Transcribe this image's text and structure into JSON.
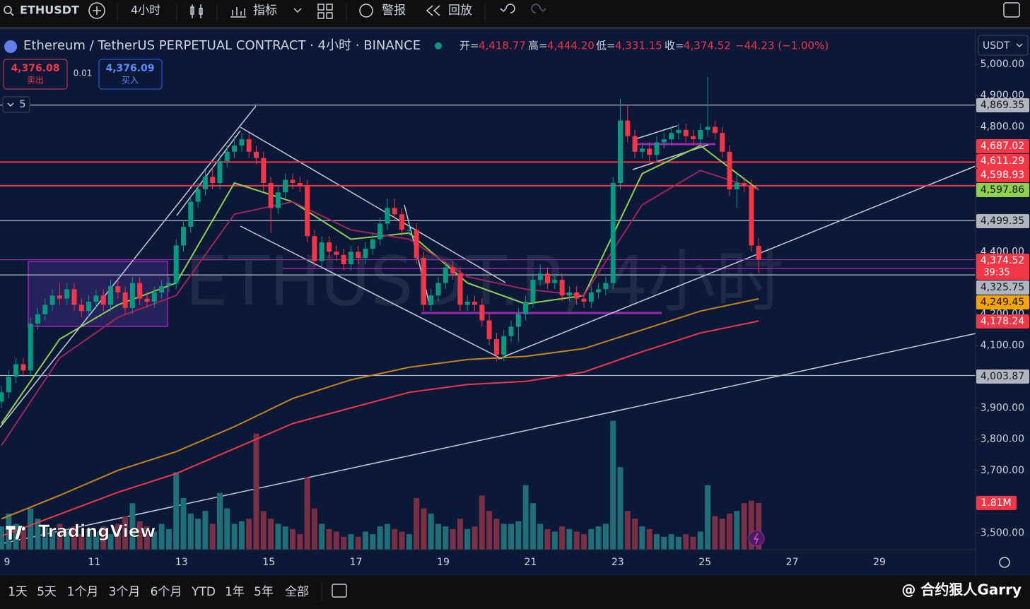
{
  "toolbar": {
    "symbol": "ETHUSDT",
    "interval": "4小时",
    "indicators": "指标",
    "alert": "警报",
    "replay": "回放"
  },
  "legend": {
    "title": "Ethereum / TetherUS PERPETUAL CONTRACT · 4小时 · BINANCE",
    "open_label": "开=",
    "open": "4,418.77",
    "high_label": "高=",
    "high": "4,444.20",
    "low_label": "低=",
    "low": "4,331.15",
    "close_label": "收=",
    "close": "4,374.52",
    "change": "−44.23 (−1.00%)"
  },
  "trade": {
    "sell_price": "4,376.08",
    "sell": "卖出",
    "spread": "0.01",
    "buy_price": "4,376.09",
    "buy": "买入"
  },
  "indicator_count": "5",
  "currency": "USDT",
  "watermark": "ETHUSDT.P, 4小时",
  "logo": "TradingView",
  "ranges": [
    "1天",
    "5天",
    "1个月",
    "3个月",
    "6个月",
    "YTD",
    "1年",
    "5年",
    "全部"
  ],
  "footer_watermark": "@ 合约狠人Garry",
  "chart_data": {
    "type": "candlestick",
    "up_color": "#089981",
    "down_color": "#f23645",
    "open": [
      3920,
      3950,
      4000,
      4040,
      4020,
      4170,
      4200,
      4230,
      4260,
      4250,
      4280,
      4230,
      4210,
      4240,
      4260,
      4230,
      4290,
      4270,
      4220,
      4300,
      4250,
      4240,
      4270,
      4290,
      4300,
      4420,
      4480,
      4560,
      4600,
      4640,
      4620,
      4690,
      4720,
      4740,
      4760,
      4720,
      4700,
      4620,
      4540,
      4590,
      4630,
      4620,
      4610,
      4450,
      4370,
      4430,
      4400,
      4390,
      4360,
      4400,
      4380,
      4410,
      4440,
      4490,
      4540,
      4520,
      4470,
      4470,
      4380,
      4230,
      4260,
      4300,
      4350,
      4330,
      4230,
      4240,
      4230,
      4180,
      4120,
      4070,
      4130,
      4160,
      4200,
      4240,
      4310,
      4330,
      4300,
      4310,
      4260,
      4270,
      4250,
      4240,
      4270,
      4280,
      4300,
      4620,
      4820,
      4770,
      4720,
      4730,
      4710,
      4750,
      4760,
      4780,
      4790,
      4770,
      4760,
      4790,
      4800,
      4780,
      4720,
      4600,
      4620,
      4610,
      4418.77
    ],
    "high": [
      3970,
      4020,
      4060,
      4060,
      4190,
      4220,
      4250,
      4280,
      4300,
      4300,
      4300,
      4250,
      4260,
      4280,
      4280,
      4310,
      4310,
      4290,
      4320,
      4320,
      4270,
      4290,
      4310,
      4320,
      4440,
      4500,
      4580,
      4620,
      4660,
      4670,
      4710,
      4740,
      4770,
      4780,
      4780,
      4740,
      4720,
      4640,
      4610,
      4650,
      4650,
      4640,
      4630,
      4470,
      4450,
      4450,
      4420,
      4410,
      4420,
      4420,
      4430,
      4460,
      4510,
      4570,
      4570,
      4540,
      4490,
      4490,
      4400,
      4280,
      4320,
      4370,
      4370,
      4350,
      4260,
      4260,
      4250,
      4200,
      4140,
      4150,
      4180,
      4220,
      4260,
      4330,
      4360,
      4350,
      4330,
      4330,
      4290,
      4290,
      4270,
      4290,
      4300,
      4320,
      4640,
      4890,
      4870,
      4790,
      4750,
      4750,
      4770,
      4780,
      4800,
      4810,
      4810,
      4790,
      4810,
      4960,
      4820,
      4800,
      4740,
      4650,
      4640,
      4630,
      4444.2
    ],
    "low": [
      3900,
      3930,
      3980,
      4000,
      4000,
      4150,
      4180,
      4210,
      4230,
      4230,
      4210,
      4190,
      4190,
      4220,
      4210,
      4210,
      4250,
      4200,
      4200,
      4230,
      4220,
      4220,
      4250,
      4270,
      4280,
      4400,
      4460,
      4540,
      4580,
      4600,
      4600,
      4670,
      4700,
      4720,
      4700,
      4680,
      4590,
      4460,
      4520,
      4570,
      4600,
      4590,
      4430,
      4350,
      4350,
      4380,
      4370,
      4340,
      4340,
      4360,
      4360,
      4390,
      4420,
      4470,
      4500,
      4450,
      4450,
      4360,
      4210,
      4210,
      4240,
      4280,
      4310,
      4210,
      4210,
      4210,
      4160,
      4100,
      4050,
      4050,
      4110,
      4110,
      4180,
      4220,
      4290,
      4280,
      4280,
      4240,
      4240,
      4230,
      4220,
      4220,
      4250,
      4260,
      4280,
      4600,
      4750,
      4700,
      4700,
      4690,
      4690,
      4730,
      4740,
      4760,
      4750,
      4740,
      4740,
      4770,
      4760,
      4700,
      4580,
      4540,
      4590,
      4400,
      4331.15
    ],
    "close": [
      3950,
      4000,
      4040,
      4020,
      4170,
      4200,
      4230,
      4260,
      4250,
      4280,
      4230,
      4210,
      4240,
      4260,
      4230,
      4290,
      4270,
      4220,
      4300,
      4250,
      4240,
      4270,
      4290,
      4300,
      4420,
      4480,
      4560,
      4600,
      4640,
      4620,
      4690,
      4720,
      4740,
      4760,
      4720,
      4700,
      4620,
      4540,
      4590,
      4630,
      4620,
      4610,
      4450,
      4370,
      4430,
      4400,
      4390,
      4360,
      4400,
      4380,
      4410,
      4440,
      4490,
      4540,
      4520,
      4470,
      4470,
      4380,
      4230,
      4260,
      4300,
      4350,
      4330,
      4230,
      4240,
      4230,
      4180,
      4120,
      4070,
      4130,
      4160,
      4200,
      4240,
      4310,
      4330,
      4300,
      4310,
      4260,
      4270,
      4250,
      4240,
      4270,
      4280,
      4300,
      4620,
      4820,
      4770,
      4720,
      4730,
      4710,
      4750,
      4760,
      4780,
      4790,
      4770,
      4760,
      4790,
      4800,
      4780,
      4720,
      4600,
      4620,
      4610,
      4420,
      4374.52
    ],
    "volume": [
      0.9,
      1.4,
      1.0,
      0.8,
      1.6,
      1.2,
      0.9,
      0.8,
      1.0,
      0.7,
      0.9,
      0.6,
      0.8,
      0.7,
      0.9,
      0.6,
      1.0,
      1.3,
      1.8,
      1.1,
      0.9,
      0.7,
      1.0,
      0.8,
      3.0,
      2.0,
      1.4,
      1.2,
      1.5,
      1.0,
      2.2,
      1.6,
      1.0,
      1.1,
      1.2,
      4.5,
      1.5,
      1.2,
      1.0,
      0.9,
      0.8,
      0.6,
      2.8,
      1.6,
      1.0,
      0.8,
      0.7,
      0.5,
      0.6,
      0.5,
      0.7,
      0.6,
      0.9,
      1.0,
      0.8,
      0.7,
      0.6,
      2.0,
      1.6,
      1.4,
      1.0,
      0.9,
      0.8,
      1.2,
      0.8,
      0.9,
      2.1,
      1.5,
      1.2,
      1.0,
      1.0,
      1.1,
      2.5,
      1.8,
      1.0,
      0.8,
      0.7,
      0.9,
      0.8,
      0.7,
      0.6,
      0.8,
      0.9,
      1.0,
      5.0,
      3.2,
      1.5,
      1.2,
      0.9,
      0.8,
      0.6,
      0.5,
      0.6,
      0.5,
      0.6,
      0.5,
      0.7,
      2.5,
      1.3,
      1.2,
      1.4,
      1.5,
      1.8,
      1.9,
      1.81
    ],
    "volume_up_color": "#1f6f78",
    "volume_down_color": "#7a2f45",
    "volume_ticks": [
      {
        "value": 1.81,
        "label": "1.81M"
      }
    ],
    "ylim": [
      3362.7,
      5115.3
    ],
    "yticks": [
      {
        "value": 5000,
        "label": "5,000.00"
      },
      {
        "value": 4900,
        "label": "4,900.00"
      },
      {
        "value": 4800,
        "label": "4,800.00"
      },
      {
        "value": 4400,
        "label": "4,400.00"
      },
      {
        "value": 4200,
        "label": "4,200.00"
      },
      {
        "value": 4100,
        "label": "4,100.00"
      },
      {
        "value": 3900,
        "label": "3,900.00"
      },
      {
        "value": 3800,
        "label": "3,800.00"
      },
      {
        "value": 3700,
        "label": "3,700.00"
      },
      {
        "value": 3500,
        "label": "3,500.00"
      }
    ],
    "x_labels": [
      "9",
      "11",
      "13",
      "15",
      "17",
      "19",
      "21",
      "23",
      "25",
      "27",
      "29"
    ],
    "moving_averages": [
      {
        "color": "#8fd14f",
        "x": [
          0,
          8,
          16,
          24,
          32,
          40,
          48,
          56,
          64,
          72,
          80,
          88,
          96,
          104
        ],
        "values": [
          3850,
          4120,
          4230,
          4300,
          4620,
          4560,
          4440,
          4460,
          4300,
          4233,
          4260,
          4650,
          4740,
          4597.86
        ]
      },
      {
        "color": "#a0245a",
        "x": [
          0,
          8,
          16,
          24,
          32,
          40,
          48,
          56,
          64,
          72,
          80,
          88,
          96,
          104
        ],
        "values": [
          3780,
          4060,
          4190,
          4260,
          4520,
          4560,
          4470,
          4440,
          4320,
          4280,
          4260,
          4550,
          4660,
          4598.93
        ]
      },
      {
        "color": "#c6841a",
        "x": [
          0,
          8,
          16,
          24,
          32,
          40,
          48,
          56,
          64,
          72,
          80,
          88,
          96,
          104
        ],
        "values": [
          3545,
          3620,
          3700,
          3760,
          3840,
          3930,
          3990,
          4030,
          4055,
          4065,
          4090,
          4150,
          4210,
          4249.45
        ]
      },
      {
        "color": "#f23645",
        "x": [
          0,
          8,
          16,
          24,
          32,
          40,
          48,
          56,
          64,
          72,
          80,
          88,
          96,
          104
        ],
        "values": [
          3490,
          3560,
          3630,
          3690,
          3770,
          3850,
          3900,
          3950,
          3975,
          3985,
          4015,
          4080,
          4140,
          4178.24
        ]
      }
    ],
    "lines": [
      {
        "value": 4869.35,
        "color": "#b2b5be"
      },
      {
        "value": 4687.02,
        "color": "#f23645"
      },
      {
        "value": 4611.29,
        "color": "#f23645"
      },
      {
        "value": 4499.35,
        "color": "#b2b5be"
      },
      {
        "value": 4374.52,
        "color": "#9c27b0"
      },
      {
        "value": 4325.75,
        "color": "#b2b5be"
      },
      {
        "value": 4003.87,
        "color": "#b2b5be"
      }
    ],
    "price_tags": [
      {
        "label": "4,869.35",
        "color": "#b2b5be",
        "text_color": "#131722"
      },
      {
        "label": "4,687.02",
        "color": "#f23645",
        "text_color": "#ffffff"
      },
      {
        "label": "4,611.29",
        "color": "#f23645",
        "text_color": "#ffffff"
      },
      {
        "label": "4,598.93",
        "color": "#f23645",
        "text_color": "#ffffff"
      },
      {
        "label": "4,597.86",
        "color": "#8fd14f",
        "text_color": "#131722"
      },
      {
        "label": "4,499.35",
        "color": "#b2b5be",
        "text_color": "#131722"
      },
      {
        "label": "4,374.52",
        "color": "#f23645",
        "text_color": "#ffffff"
      },
      {
        "label": "4,325.75",
        "color": "#b2b5be",
        "text_color": "#131722"
      },
      {
        "label": "4,249.45",
        "color": "#f5a300",
        "text_color": "#131722"
      },
      {
        "label": "4,178.24",
        "color": "#f23645",
        "text_color": "#ffffff"
      },
      {
        "label": "4,003.87",
        "color": "#b2b5be",
        "text_color": "#131722"
      }
    ],
    "countdown": "39:35"
  }
}
